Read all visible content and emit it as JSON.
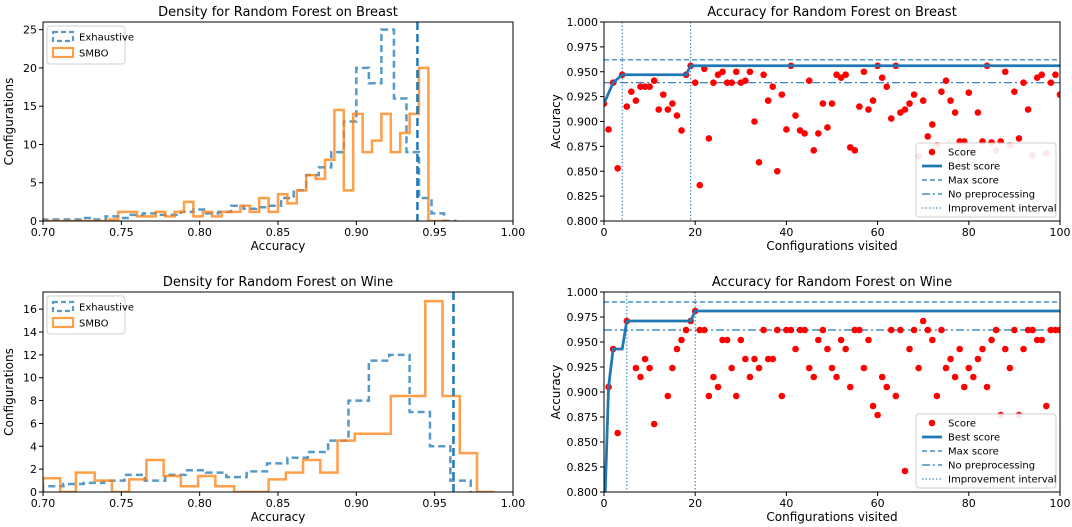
{
  "chart_data": [
    {
      "type": "histogram",
      "title": "Density for Random Forest on Breast",
      "xlabel": "Accuracy",
      "ylabel": "Configurations",
      "xlim": [
        0.7,
        1.0
      ],
      "ylim": [
        0,
        26
      ],
      "xticks": [
        "0.70",
        "0.75",
        "0.80",
        "0.85",
        "0.90",
        "0.95",
        "1.00"
      ],
      "yticks": [
        "0",
        "5",
        "10",
        "15",
        "20",
        "25"
      ],
      "vline": 0.939,
      "legend_position": "upper-left",
      "series": [
        {
          "name": "Exhaustive",
          "color": "#1f77b4",
          "style": "dashed",
          "edges": [
            0.7,
            0.708,
            0.716,
            0.724,
            0.732,
            0.74,
            0.748,
            0.756,
            0.764,
            0.772,
            0.78,
            0.788,
            0.796,
            0.804,
            0.812,
            0.82,
            0.828,
            0.836,
            0.844,
            0.852,
            0.86,
            0.868,
            0.876,
            0.884,
            0.892,
            0.9,
            0.908,
            0.916,
            0.924,
            0.932,
            0.94,
            0.948,
            0.956,
            0.964
          ],
          "counts": [
            0.2,
            0.2,
            0.2,
            0.4,
            0.2,
            0.6,
            0.4,
            0.8,
            1,
            0.8,
            0.8,
            1.2,
            1.5,
            1,
            1.2,
            2,
            1.6,
            1.8,
            2,
            3,
            4,
            6,
            7,
            9,
            13,
            20,
            18,
            25,
            16,
            9,
            3,
            1,
            0
          ]
        },
        {
          "name": "SMBO",
          "color": "#ff7f0e",
          "style": "solid",
          "edges": [
            0.7,
            0.742,
            0.748,
            0.76,
            0.766,
            0.772,
            0.778,
            0.784,
            0.79,
            0.796,
            0.802,
            0.808,
            0.814,
            0.82,
            0.826,
            0.832,
            0.838,
            0.844,
            0.85,
            0.856,
            0.862,
            0.868,
            0.874,
            0.88,
            0.886,
            0.892,
            0.898,
            0.904,
            0.91,
            0.916,
            0.922,
            0.928,
            0.934,
            0.94,
            0.946,
            0.958
          ],
          "counts": [
            0,
            0.2,
            1.2,
            0.6,
            0.6,
            1.2,
            0.6,
            1.2,
            2.5,
            0.6,
            1.2,
            0.6,
            1.2,
            1.2,
            2,
            1.2,
            3,
            1.2,
            3.5,
            2.3,
            4,
            6,
            5.5,
            8,
            14.5,
            4,
            14,
            9,
            10.5,
            14,
            9,
            11.5,
            14,
            20,
            0
          ]
        }
      ]
    },
    {
      "type": "scatter",
      "title": "Accuracy for Random Forest on Breast",
      "xlabel": "Configurations visited",
      "ylabel": "Accuracy",
      "xlim": [
        0,
        100
      ],
      "ylim": [
        0.8,
        1.0
      ],
      "xticks": [
        "0",
        "20",
        "40",
        "60",
        "80",
        "100"
      ],
      "yticks": [
        "0.800",
        "0.825",
        "0.850",
        "0.875",
        "0.900",
        "0.925",
        "0.950",
        "0.975",
        "1.000"
      ],
      "max_score": 0.962,
      "no_preprocessing": 0.939,
      "improvement_lines": [
        4,
        19
      ],
      "legend_position": "lower-right",
      "legend": [
        "Score",
        "Best score",
        "Max score",
        "No preprocessing",
        "Improvement interval"
      ],
      "best_score": [
        [
          0,
          0.918
        ],
        [
          2,
          0.939
        ],
        [
          4,
          0.947
        ],
        [
          18,
          0.947
        ],
        [
          19,
          0.956
        ],
        [
          100,
          0.956
        ]
      ],
      "scores": [
        [
          0,
          0.918
        ],
        [
          1,
          0.892
        ],
        [
          2,
          0.939
        ],
        [
          3,
          0.853
        ],
        [
          4,
          0.947
        ],
        [
          5,
          0.915
        ],
        [
          6,
          0.93
        ],
        [
          7,
          0.921
        ],
        [
          8,
          0.935
        ],
        [
          9,
          0.935
        ],
        [
          10,
          0.935
        ],
        [
          11,
          0.941
        ],
        [
          12,
          0.912
        ],
        [
          13,
          0.927
        ],
        [
          14,
          0.912
        ],
        [
          15,
          0.918
        ],
        [
          16,
          0.906
        ],
        [
          17,
          0.891
        ],
        [
          18,
          0.947
        ],
        [
          19,
          0.956
        ],
        [
          20,
          0.939
        ],
        [
          21,
          0.836
        ],
        [
          22,
          0.953
        ],
        [
          23,
          0.883
        ],
        [
          24,
          0.939
        ],
        [
          25,
          0.947
        ],
        [
          26,
          0.95
        ],
        [
          27,
          0.939
        ],
        [
          28,
          0.939
        ],
        [
          29,
          0.95
        ],
        [
          30,
          0.939
        ],
        [
          31,
          0.941
        ],
        [
          32,
          0.95
        ],
        [
          33,
          0.9
        ],
        [
          34,
          0.859
        ],
        [
          35,
          0.947
        ],
        [
          36,
          0.921
        ],
        [
          37,
          0.935
        ],
        [
          38,
          0.85
        ],
        [
          39,
          0.927
        ],
        [
          40,
          0.892
        ],
        [
          41,
          0.956
        ],
        [
          42,
          0.906
        ],
        [
          43,
          0.891
        ],
        [
          44,
          0.888
        ],
        [
          45,
          0.941
        ],
        [
          46,
          0.871
        ],
        [
          47,
          0.888
        ],
        [
          48,
          0.918
        ],
        [
          49,
          0.894
        ],
        [
          50,
          0.918
        ],
        [
          51,
          0.947
        ],
        [
          52,
          0.944
        ],
        [
          53,
          0.947
        ],
        [
          54,
          0.874
        ],
        [
          55,
          0.871
        ],
        [
          56,
          0.915
        ],
        [
          57,
          0.95
        ],
        [
          58,
          0.912
        ],
        [
          59,
          0.921
        ],
        [
          60,
          0.956
        ],
        [
          61,
          0.944
        ],
        [
          62,
          0.935
        ],
        [
          63,
          0.903
        ],
        [
          64,
          0.956
        ],
        [
          65,
          0.909
        ],
        [
          66,
          0.912
        ],
        [
          67,
          0.918
        ],
        [
          68,
          0.927
        ],
        [
          69,
          0.865
        ],
        [
          70,
          0.921
        ],
        [
          71,
          0.885
        ],
        [
          72,
          0.897
        ],
        [
          73,
          0.876
        ],
        [
          74,
          0.93
        ],
        [
          75,
          0.941
        ],
        [
          76,
          0.921
        ],
        [
          77,
          0.909
        ],
        [
          78,
          0.88
        ],
        [
          79,
          0.88
        ],
        [
          80,
          0.929
        ],
        [
          81,
          0.869
        ],
        [
          82,
          0.909
        ],
        [
          83,
          0.88
        ],
        [
          84,
          0.956
        ],
        [
          85,
          0.879
        ],
        [
          86,
          0.871
        ],
        [
          87,
          0.88
        ],
        [
          88,
          0.95
        ],
        [
          89,
          0.876
        ],
        [
          90,
          0.93
        ],
        [
          91,
          0.883
        ],
        [
          92,
          0.939
        ],
        [
          93,
          0.912
        ],
        [
          94,
          0.866
        ],
        [
          95,
          0.944
        ],
        [
          96,
          0.947
        ],
        [
          97,
          0.868
        ],
        [
          98,
          0.939
        ],
        [
          99,
          0.947
        ],
        [
          100,
          0.927
        ]
      ]
    },
    {
      "type": "histogram",
      "title": "Density for Random Forest on Wine",
      "xlabel": "Accuracy",
      "ylabel": "Configurations",
      "xlim": [
        0.7,
        1.0
      ],
      "ylim": [
        0,
        17.5
      ],
      "xticks": [
        "0.70",
        "0.75",
        "0.80",
        "0.85",
        "0.90",
        "0.95",
        "1.00"
      ],
      "yticks": [
        "0",
        "2",
        "4",
        "6",
        "8",
        "10",
        "12",
        "14",
        "16"
      ],
      "vline": 0.962,
      "legend_position": "upper-left",
      "series": [
        {
          "name": "Exhaustive",
          "color": "#1f77b4",
          "style": "dashed",
          "edges": [
            0.7,
            0.713,
            0.726,
            0.739,
            0.752,
            0.765,
            0.778,
            0.791,
            0.804,
            0.817,
            0.83,
            0.843,
            0.856,
            0.869,
            0.882,
            0.895,
            0.908,
            0.921,
            0.934,
            0.947,
            0.96,
            0.973
          ],
          "counts": [
            0.5,
            0.7,
            0.8,
            1.0,
            1.5,
            1.0,
            1.5,
            1.9,
            1.7,
            1.3,
            1.8,
            2.5,
            3,
            3.5,
            4.5,
            8,
            11.5,
            12,
            7,
            4,
            1
          ],
          "gap_edges": [
            0.876,
            0.888
          ]
        },
        {
          "name": "SMBO",
          "color": "#ff7f0e",
          "style": "solid",
          "edges": [
            0.7,
            0.711,
            0.721,
            0.733,
            0.744,
            0.755,
            0.766,
            0.777,
            0.788,
            0.799,
            0.81,
            0.822,
            0.833,
            0.844,
            0.855,
            0.866,
            0.877,
            0.888,
            0.899,
            0.911,
            0.922,
            0.933,
            0.944,
            0.955,
            0.966,
            0.977,
            0.988
          ],
          "counts": [
            1.2,
            0,
            1.7,
            1,
            0,
            1.1,
            2.8,
            1.4,
            0.5,
            1.4,
            0.5,
            0,
            0,
            1.1,
            1.7,
            2.8,
            1.7,
            4.5,
            5.1,
            5.1,
            8.4,
            8.4,
            16.7,
            8.4,
            3.4,
            0
          ]
        }
      ]
    },
    {
      "type": "scatter",
      "title": "Accuracy for Random Forest on Wine",
      "xlabel": "Configurations visited",
      "ylabel": "Accuracy",
      "xlim": [
        0,
        100
      ],
      "ylim": [
        0.8,
        1.0
      ],
      "xticks": [
        "0",
        "20",
        "40",
        "60",
        "80",
        "100"
      ],
      "yticks": [
        "0.800",
        "0.825",
        "0.850",
        "0.875",
        "0.900",
        "0.925",
        "0.950",
        "0.975",
        "1.000"
      ],
      "max_score": 0.99,
      "no_preprocessing": 0.962,
      "improvement_lines": [
        5,
        20
      ],
      "legend_position": "lower-right",
      "legend": [
        "Score",
        "Best score",
        "Max score",
        "No preprocessing",
        "Improvement interval"
      ],
      "best_score": [
        [
          0.2,
          0.79
        ],
        [
          1,
          0.905
        ],
        [
          2,
          0.943
        ],
        [
          4,
          0.943
        ],
        [
          5,
          0.971
        ],
        [
          19,
          0.971
        ],
        [
          20,
          0.981
        ],
        [
          100,
          0.981
        ]
      ],
      "scores": [
        [
          1,
          0.905
        ],
        [
          2,
          0.943
        ],
        [
          3,
          0.859
        ],
        [
          5,
          0.971
        ],
        [
          7,
          0.924
        ],
        [
          8,
          0.915
        ],
        [
          9,
          0.933
        ],
        [
          10,
          0.924
        ],
        [
          11,
          0.868
        ],
        [
          14,
          0.896
        ],
        [
          15,
          0.924
        ],
        [
          16,
          0.943
        ],
        [
          17,
          0.952
        ],
        [
          18,
          0.962
        ],
        [
          19,
          0.971
        ],
        [
          20,
          0.981
        ],
        [
          21,
          0.962
        ],
        [
          22,
          0.962
        ],
        [
          23,
          0.896
        ],
        [
          24,
          0.915
        ],
        [
          25,
          0.905
        ],
        [
          26,
          0.952
        ],
        [
          27,
          0.952
        ],
        [
          28,
          0.924
        ],
        [
          29,
          0.896
        ],
        [
          30,
          0.952
        ],
        [
          31,
          0.933
        ],
        [
          32,
          0.915
        ],
        [
          33,
          0.933
        ],
        [
          34,
          0.924
        ],
        [
          35,
          0.962
        ],
        [
          36,
          0.933
        ],
        [
          37,
          0.933
        ],
        [
          38,
          0.962
        ],
        [
          39,
          0.896
        ],
        [
          40,
          0.962
        ],
        [
          41,
          0.962
        ],
        [
          42,
          0.943
        ],
        [
          43,
          0.962
        ],
        [
          44,
          0.962
        ],
        [
          45,
          0.924
        ],
        [
          46,
          0.915
        ],
        [
          47,
          0.952
        ],
        [
          48,
          0.962
        ],
        [
          49,
          0.943
        ],
        [
          50,
          0.924
        ],
        [
          51,
          0.915
        ],
        [
          52,
          0.952
        ],
        [
          53,
          0.943
        ],
        [
          54,
          0.905
        ],
        [
          55,
          0.962
        ],
        [
          56,
          0.962
        ],
        [
          57,
          0.924
        ],
        [
          58,
          0.952
        ],
        [
          59,
          0.886
        ],
        [
          60,
          0.877
        ],
        [
          61,
          0.915
        ],
        [
          62,
          0.905
        ],
        [
          63,
          0.962
        ],
        [
          64,
          0.896
        ],
        [
          65,
          0.962
        ],
        [
          66,
          0.821
        ],
        [
          67,
          0.943
        ],
        [
          68,
          0.962
        ],
        [
          69,
          0.924
        ],
        [
          70,
          0.971
        ],
        [
          71,
          0.962
        ],
        [
          72,
          0.952
        ],
        [
          73,
          0.896
        ],
        [
          74,
          0.962
        ],
        [
          75,
          0.924
        ],
        [
          76,
          0.933
        ],
        [
          77,
          0.915
        ],
        [
          78,
          0.943
        ],
        [
          79,
          0.905
        ],
        [
          80,
          0.924
        ],
        [
          81,
          0.915
        ],
        [
          82,
          0.933
        ],
        [
          83,
          0.943
        ],
        [
          84,
          0.905
        ],
        [
          85,
          0.952
        ],
        [
          86,
          0.962
        ],
        [
          87,
          0.877
        ],
        [
          88,
          0.943
        ],
        [
          89,
          0.924
        ],
        [
          90,
          0.962
        ],
        [
          91,
          0.877
        ],
        [
          92,
          0.943
        ],
        [
          93,
          0.962
        ],
        [
          94,
          0.962
        ],
        [
          95,
          0.952
        ],
        [
          96,
          0.952
        ],
        [
          97,
          0.886
        ],
        [
          98,
          0.962
        ],
        [
          99,
          0.962
        ],
        [
          100,
          0.962
        ]
      ]
    }
  ]
}
